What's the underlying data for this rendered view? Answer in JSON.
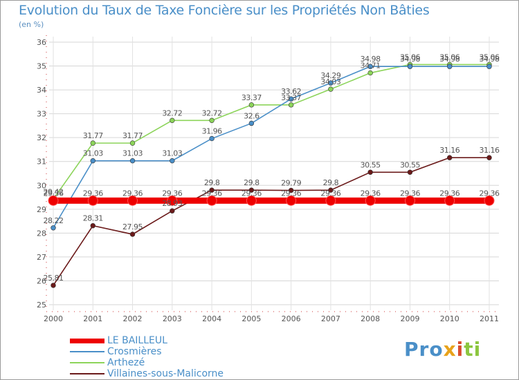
{
  "chart_data": {
    "type": "line",
    "title": "Evolution du Taux de Taxe Foncière sur les Propriétés Non Bâties",
    "subtitle": "(en %)",
    "x": [
      "2000",
      "2001",
      "2002",
      "2003",
      "2004",
      "2005",
      "2006",
      "2007",
      "2008",
      "2009",
      "2010",
      "2011"
    ],
    "ylim": [
      25,
      36
    ],
    "yticks": [
      "25",
      "26",
      "27",
      "28",
      "29",
      "30",
      "31",
      "32",
      "33",
      "34",
      "35",
      "36"
    ],
    "grid": true,
    "legend_position": "bottom-left",
    "series": [
      {
        "name": "LE BAILLEUL",
        "color": "#ee0000",
        "values": [
          29.36,
          29.36,
          29.36,
          29.36,
          29.36,
          29.36,
          29.36,
          29.36,
          29.36,
          29.36,
          29.36,
          29.36
        ],
        "labels": [
          "29.36",
          "29.36",
          "29.36",
          "29.36",
          "29.36",
          "29.36",
          "29.36",
          "29.36",
          "29.36",
          "29.36",
          "29.36",
          "29.36"
        ]
      },
      {
        "name": "Crosmières",
        "color": "#4a8fc8",
        "values": [
          28.22,
          31.03,
          31.03,
          31.03,
          31.96,
          32.6,
          33.62,
          34.29,
          34.98,
          34.98,
          34.98,
          34.98
        ],
        "labels": [
          "28.22",
          "31.03",
          "31.03",
          "31.03",
          "31.96",
          "32.6",
          "33.62",
          "34.29",
          "34.98",
          "34.98",
          "34.98",
          "34.98"
        ]
      },
      {
        "name": "Arthezé",
        "color": "#8cd45a",
        "values": [
          29.42,
          31.77,
          31.77,
          32.72,
          32.72,
          33.37,
          33.37,
          34.03,
          34.71,
          35.06,
          35.06,
          35.06
        ],
        "labels": [
          "29.42",
          "31.77",
          "31.77",
          "32.72",
          "32.72",
          "33.37",
          "33.37",
          "34.03",
          "34.71",
          "35.06",
          "35.06",
          "35.06"
        ]
      },
      {
        "name": "Villaines-sous-Malicorne",
        "color": "#6b1a1a",
        "values": [
          25.81,
          28.31,
          27.95,
          28.93,
          29.8,
          29.8,
          29.79,
          29.8,
          30.55,
          30.55,
          31.16,
          31.16
        ],
        "labels": [
          "25.81",
          "28.31",
          "27.95",
          "28.93",
          "29.8",
          "29.8",
          "29.79",
          "29.8",
          "30.55",
          "30.55",
          "31.16",
          "31.16"
        ]
      }
    ]
  },
  "logo": {
    "p1": "Pro",
    "p2": "x",
    "p3": "i",
    "p4": "ti"
  }
}
